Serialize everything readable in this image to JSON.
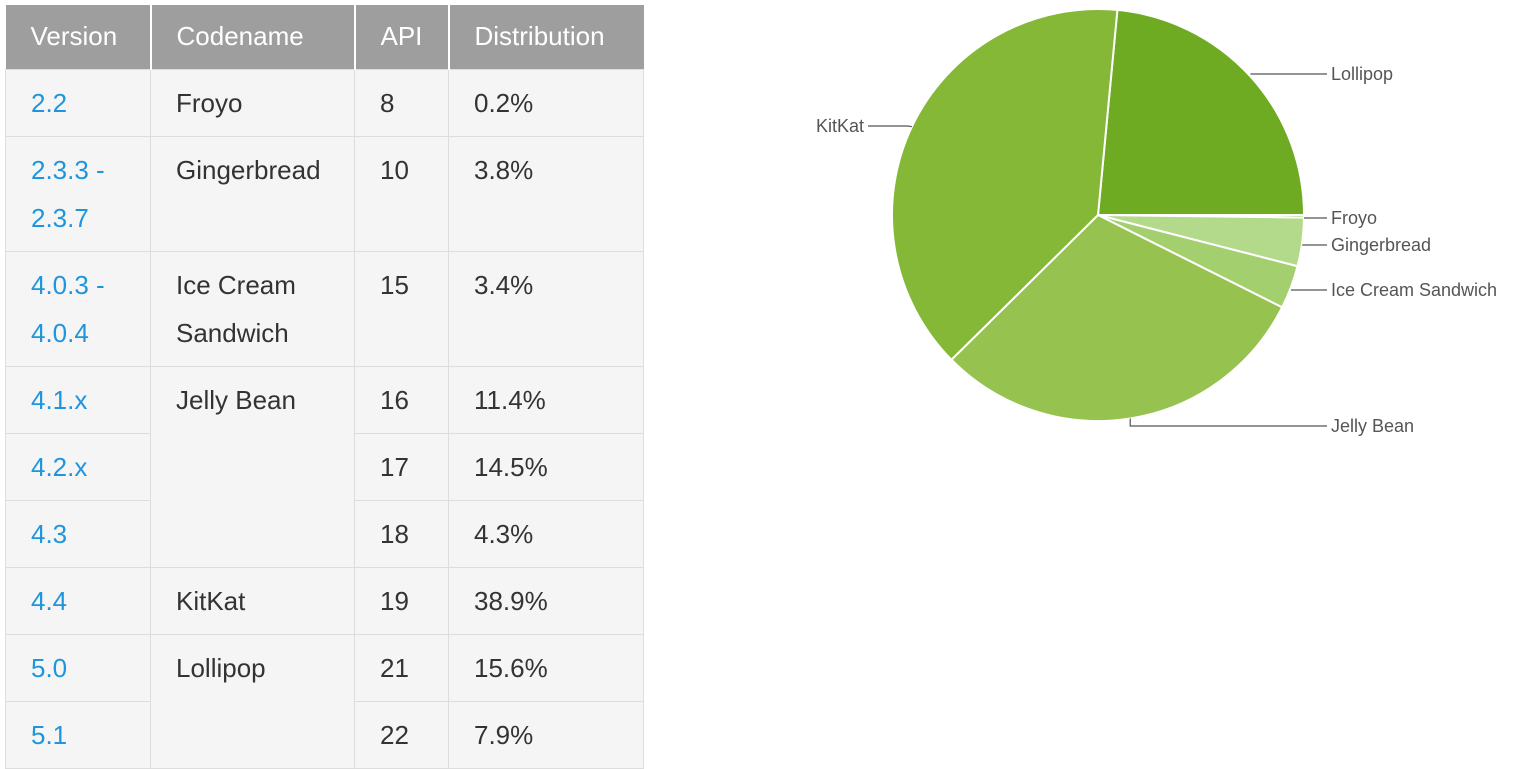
{
  "table": {
    "headers": [
      "Version",
      "Codename",
      "API",
      "Distribution"
    ],
    "rows": [
      {
        "version": "2.2",
        "codename": "Froyo",
        "api": "8",
        "distribution": "0.2%"
      },
      {
        "version": "2.3.3 - 2.3.7",
        "codename": "Gingerbread",
        "api": "10",
        "distribution": "3.8%"
      },
      {
        "version": "4.0.3 - 4.0.4",
        "codename": "Ice Cream Sandwich",
        "api": "15",
        "distribution": "3.4%"
      },
      {
        "version": "4.1.x",
        "codename": "Jelly Bean",
        "api": "16",
        "distribution": "11.4%"
      },
      {
        "version": "4.2.x",
        "codename": "",
        "api": "17",
        "distribution": "14.5%"
      },
      {
        "version": "4.3",
        "codename": "",
        "api": "18",
        "distribution": "4.3%"
      },
      {
        "version": "4.4",
        "codename": "KitKat",
        "api": "19",
        "distribution": "38.9%"
      },
      {
        "version": "5.0",
        "codename": "Lollipop",
        "api": "21",
        "distribution": "15.6%"
      },
      {
        "version": "5.1",
        "codename": "",
        "api": "22",
        "distribution": "7.9%"
      }
    ]
  },
  "chart_data": {
    "type": "pie",
    "categories": [
      "Lollipop",
      "Froyo",
      "Gingerbread",
      "Ice Cream Sandwich",
      "Jelly Bean",
      "KitKat"
    ],
    "values": [
      23.5,
      0.2,
      3.8,
      3.4,
      30.2,
      38.9
    ],
    "colors": [
      "#6fab22",
      "#a4cf6e",
      "#b3d98a",
      "#a4cf6e",
      "#96c24f",
      "#85b836"
    ]
  }
}
